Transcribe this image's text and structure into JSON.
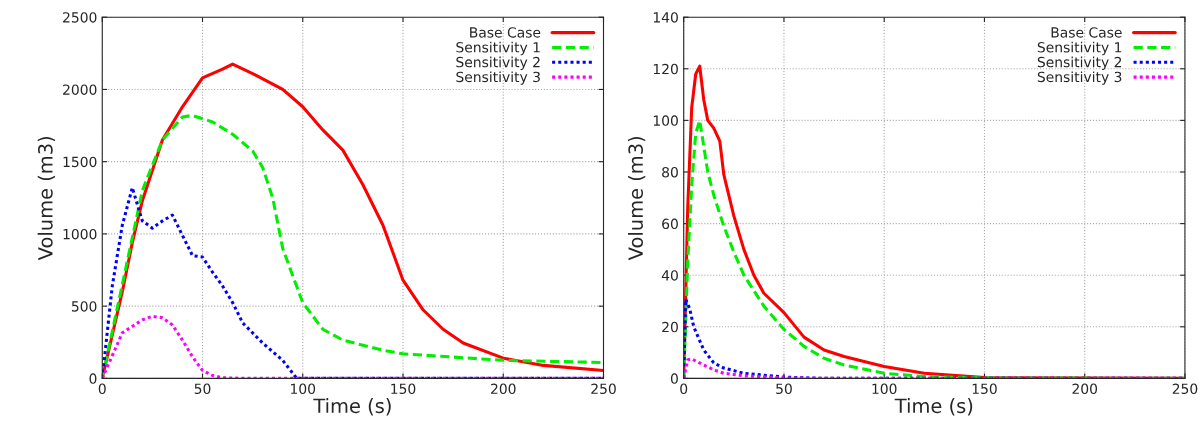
{
  "chart_data": [
    {
      "type": "line",
      "xlabel": "Time (s)",
      "ylabel": "Volume (m3)",
      "xlim": [
        0,
        250
      ],
      "ylim": [
        0,
        2500
      ],
      "xticks": [
        0,
        50,
        100,
        150,
        200,
        250
      ],
      "yticks": [
        0,
        500,
        1000,
        1500,
        2000,
        2500
      ],
      "grid": true,
      "legend": "top right",
      "marker": "none",
      "series": [
        {
          "name": "Base Case",
          "color": "#ff0000",
          "line_style": "solid",
          "x": [
            0,
            10,
            15,
            20,
            30,
            40,
            50,
            60,
            65,
            75,
            90,
            100,
            110,
            120,
            130,
            140,
            150,
            160,
            170,
            180,
            200,
            220,
            250
          ],
          "values": [
            0,
            600,
            940,
            1230,
            1650,
            1880,
            2080,
            2140,
            2175,
            2110,
            2000,
            1880,
            1720,
            1580,
            1340,
            1060,
            680,
            475,
            340,
            245,
            140,
            90,
            55
          ]
        },
        {
          "name": "Sensitivity 1",
          "color": "#00ee00",
          "line_style": "dashed",
          "x": [
            0,
            10,
            20,
            30,
            40,
            45,
            55,
            65,
            75,
            80,
            85,
            90,
            95,
            100,
            110,
            120,
            140,
            150,
            200,
            250
          ],
          "values": [
            0,
            650,
            1300,
            1650,
            1810,
            1820,
            1775,
            1690,
            1575,
            1460,
            1250,
            900,
            710,
            525,
            340,
            265,
            195,
            170,
            125,
            110
          ]
        },
        {
          "name": "Sensitivity 2",
          "color": "#0000ff",
          "line_style": "dotted",
          "x": [
            0,
            5,
            10,
            15,
            18,
            20,
            25,
            30,
            35,
            40,
            45,
            50,
            55,
            60,
            65,
            70,
            80,
            90,
            97,
            250
          ],
          "values": [
            0,
            640,
            1060,
            1320,
            1180,
            1090,
            1040,
            1090,
            1130,
            990,
            850,
            840,
            735,
            640,
            525,
            385,
            245,
            125,
            0,
            0
          ]
        },
        {
          "name": "Sensitivity 3",
          "color": "#ff00ff",
          "line_style": "dotted",
          "x": [
            0,
            10,
            20,
            25,
            30,
            35,
            40,
            45,
            50,
            55,
            60,
            70,
            250
          ],
          "values": [
            0,
            315,
            405,
            430,
            420,
            370,
            265,
            150,
            55,
            20,
            5,
            0,
            0
          ]
        }
      ]
    },
    {
      "type": "line",
      "xlabel": "Time (s)",
      "ylabel": "Volume (m3)",
      "xlim": [
        0,
        250
      ],
      "ylim": [
        0,
        140
      ],
      "xticks": [
        0,
        50,
        100,
        150,
        200,
        250
      ],
      "yticks": [
        0,
        20,
        40,
        60,
        80,
        100,
        120,
        140
      ],
      "grid": true,
      "legend": "top right",
      "marker": "none",
      "series": [
        {
          "name": "Base Case",
          "color": "#ff0000",
          "line_style": "solid",
          "x": [
            0,
            2,
            4,
            6,
            8,
            10,
            12,
            15,
            18,
            20,
            25,
            30,
            35,
            40,
            50,
            60,
            70,
            80,
            100,
            120,
            150,
            250
          ],
          "values": [
            0,
            66,
            105,
            118,
            121,
            108,
            100,
            97,
            92,
            79,
            63,
            50,
            40,
            33,
            25.5,
            16,
            11,
            8.5,
            4.6,
            2,
            0.3,
            0
          ]
        },
        {
          "name": "Sensitivity 1",
          "color": "#00ee00",
          "line_style": "dashed",
          "x": [
            0,
            2,
            4,
            6,
            8,
            10,
            12,
            15,
            20,
            25,
            30,
            40,
            50,
            60,
            70,
            80,
            100,
            120,
            150,
            250
          ],
          "values": [
            0,
            45,
            75,
            95,
            100,
            90,
            80,
            71,
            59,
            49,
            40,
            28,
            19,
            12.4,
            7.8,
            5.2,
            2,
            0.7,
            0.2,
            0
          ]
        },
        {
          "name": "Sensitivity 2",
          "color": "#0000ff",
          "line_style": "dotted",
          "x": [
            0,
            1,
            3,
            5,
            10,
            15,
            20,
            30,
            50,
            70,
            250
          ],
          "values": [
            0,
            30.7,
            27,
            20,
            11,
            6,
            4,
            2,
            0.5,
            0,
            0
          ]
        },
        {
          "name": "Sensitivity 3",
          "color": "#ff00ff",
          "line_style": "dotted",
          "x": [
            0,
            2,
            4,
            10,
            15,
            20,
            30,
            50,
            70,
            250
          ],
          "values": [
            0,
            7.2,
            7.5,
            5.2,
            3.3,
            2,
            1,
            0.2,
            0,
            0
          ]
        }
      ]
    }
  ]
}
